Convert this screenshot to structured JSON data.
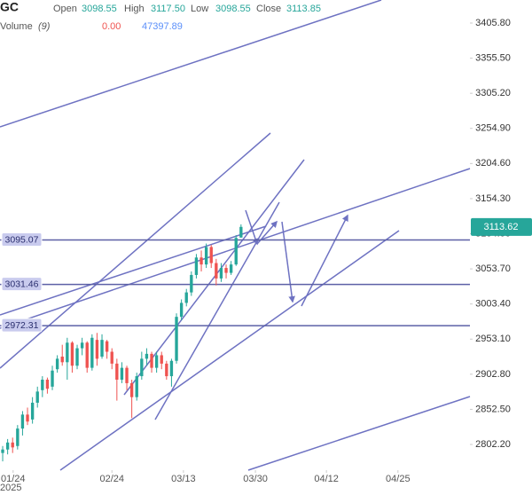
{
  "chart_data": {
    "type": "candlestick",
    "symbol": "GC",
    "legend": {
      "open_label": "Open",
      "open": "3098.55",
      "high_label": "High",
      "high": "3117.50",
      "low_label": "Low",
      "low": "3098.55",
      "close_label": "Close",
      "close": "3113.85",
      "volume_label": "Volume",
      "volume_period": "(9)",
      "volume_change": "0.00",
      "volume_value": "47397.89"
    },
    "up_color": "#26a69a",
    "down_color": "#ef5350",
    "open": [
      2790,
      2795,
      2805,
      2800,
      2825,
      2845,
      2838,
      2862,
      2880,
      2895,
      2885,
      2910,
      2928,
      2920,
      2948,
      2915,
      2940,
      2948,
      2912,
      2952,
      2928,
      2950,
      2935,
      2918,
      2895,
      2912,
      2890,
      2870,
      2900,
      2925,
      2932,
      2912,
      2930,
      2918,
      2900,
      2922,
      2985,
      3005,
      3020,
      3045,
      3070,
      3060,
      3085,
      3062,
      3040,
      3055,
      3048,
      3060,
      3098.55
    ],
    "high": [
      2800,
      2810,
      2812,
      2830,
      2850,
      2855,
      2870,
      2885,
      2900,
      2898,
      2915,
      2930,
      2945,
      2955,
      2950,
      2945,
      2955,
      2950,
      2960,
      2962,
      2960,
      2952,
      2940,
      2925,
      2920,
      2915,
      2895,
      2905,
      2935,
      2940,
      2935,
      2935,
      2935,
      2922,
      2925,
      2990,
      3010,
      3025,
      3050,
      3075,
      3080,
      3090,
      3088,
      3068,
      3062,
      3060,
      3065,
      3102,
      3117.5
    ],
    "low": [
      2778,
      2788,
      2790,
      2795,
      2815,
      2830,
      2832,
      2855,
      2870,
      2875,
      2880,
      2905,
      2915,
      2895,
      2905,
      2910,
      2930,
      2905,
      2908,
      2915,
      2925,
      2925,
      2910,
      2865,
      2890,
      2880,
      2840,
      2865,
      2895,
      2915,
      2905,
      2905,
      2910,
      2895,
      2885,
      2918,
      2980,
      3000,
      3015,
      3040,
      3050,
      3055,
      3055,
      3030,
      3035,
      3040,
      3045,
      3058,
      3098.55
    ],
    "close": [
      2795,
      2805,
      2798,
      2825,
      2845,
      2835,
      2862,
      2878,
      2895,
      2882,
      2908,
      2925,
      2920,
      2948,
      2915,
      2940,
      2948,
      2912,
      2955,
      2925,
      2952,
      2935,
      2918,
      2895,
      2912,
      2890,
      2870,
      2900,
      2925,
      2932,
      2912,
      2930,
      2918,
      2900,
      2922,
      2985,
      3005,
      3020,
      3045,
      3070,
      3060,
      3085,
      3062,
      3040,
      3055,
      3048,
      3060,
      3098,
      3113.85
    ],
    "xlim": [
      -0.54,
      94.1
    ],
    "xticks": [
      {
        "value": 2.1,
        "label": "01/24"
      },
      {
        "value": 22,
        "label": "02/24"
      },
      {
        "value": 36.4,
        "label": "03/13"
      },
      {
        "value": 50.9,
        "label": "03/30"
      },
      {
        "value": 65.2,
        "label": "04/12"
      },
      {
        "value": 79.6,
        "label": "04/25"
      }
    ],
    "x_year": "2025",
    "ylim": [
      2765.4,
      3438.8
    ],
    "yticks": [
      {
        "value": 3405.8,
        "label": "3405.80"
      },
      {
        "value": 3355.5,
        "label": "3355.50"
      },
      {
        "value": 3305.2,
        "label": "3305.20"
      },
      {
        "value": 3254.9,
        "label": "3254.90"
      },
      {
        "value": 3204.6,
        "label": "3204.60"
      },
      {
        "value": 3154.3,
        "label": "3154.30"
      },
      {
        "value": 3104,
        "label": "3104.00"
      },
      {
        "value": 3053.7,
        "label": "3053.70"
      },
      {
        "value": 3003.4,
        "label": "3003.40"
      },
      {
        "value": 2953.1,
        "label": "2953.10"
      },
      {
        "value": 2902.8,
        "label": "2902.80"
      },
      {
        "value": 2852.5,
        "label": "2852.50"
      },
      {
        "value": 2802.2,
        "label": "2802.20"
      }
    ],
    "grid": false,
    "last_price": 3113.62,
    "horizontal_lines": [
      3095.07,
      3031.46,
      2972.31
    ],
    "line_color": "#5c60a6"
  }
}
